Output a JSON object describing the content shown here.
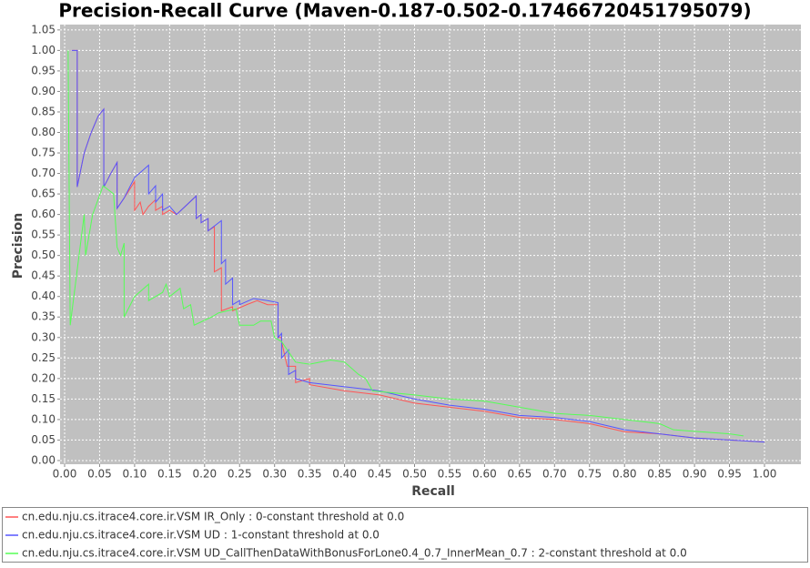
{
  "chart_data": {
    "type": "line",
    "title": "Precision-Recall Curve (Maven-0.187-0.502-0.17466720451795079)",
    "x_label": "Recall",
    "y_label": "Precision",
    "xlim": [
      -0.0065,
      1.052
    ],
    "ylim": [
      -0.009,
      1.063
    ],
    "grid": true,
    "legend": "bottom",
    "xticks": [
      {
        "value": 0,
        "label": "0.00"
      },
      {
        "value": 0.05,
        "label": "0.05"
      },
      {
        "value": 0.1,
        "label": "0.10"
      },
      {
        "value": 0.15,
        "label": "0.15"
      },
      {
        "value": 0.2,
        "label": "0.20"
      },
      {
        "value": 0.25,
        "label": "0.25"
      },
      {
        "value": 0.3,
        "label": "0.30"
      },
      {
        "value": 0.35,
        "label": "0.35"
      },
      {
        "value": 0.4,
        "label": "0.40"
      },
      {
        "value": 0.45,
        "label": "0.45"
      },
      {
        "value": 0.5,
        "label": "0.50"
      },
      {
        "value": 0.55,
        "label": "0.55"
      },
      {
        "value": 0.6,
        "label": "0.60"
      },
      {
        "value": 0.65,
        "label": "0.65"
      },
      {
        "value": 0.7,
        "label": "0.70"
      },
      {
        "value": 0.75,
        "label": "0.75"
      },
      {
        "value": 0.8,
        "label": "0.80"
      },
      {
        "value": 0.85,
        "label": "0.85"
      },
      {
        "value": 0.9,
        "label": "0.90"
      },
      {
        "value": 0.95,
        "label": "0.95"
      },
      {
        "value": 1,
        "label": "1.00"
      }
    ],
    "yticks": [
      {
        "value": 0,
        "label": "0.00"
      },
      {
        "value": 0.05,
        "label": "0.05"
      },
      {
        "value": 0.1,
        "label": "0.10"
      },
      {
        "value": 0.15,
        "label": "0.15"
      },
      {
        "value": 0.2,
        "label": "0.20"
      },
      {
        "value": 0.25,
        "label": "0.25"
      },
      {
        "value": 0.3,
        "label": "0.30"
      },
      {
        "value": 0.35,
        "label": "0.35"
      },
      {
        "value": 0.4,
        "label": "0.40"
      },
      {
        "value": 0.45,
        "label": "0.45"
      },
      {
        "value": 0.5,
        "label": "0.50"
      },
      {
        "value": 0.55,
        "label": "0.55"
      },
      {
        "value": 0.6,
        "label": "0.60"
      },
      {
        "value": 0.65,
        "label": "0.65"
      },
      {
        "value": 0.7,
        "label": "0.70"
      },
      {
        "value": 0.75,
        "label": "0.75"
      },
      {
        "value": 0.8,
        "label": "0.80"
      },
      {
        "value": 0.85,
        "label": "0.85"
      },
      {
        "value": 0.9,
        "label": "0.90"
      },
      {
        "value": 0.95,
        "label": "0.95"
      },
      {
        "value": 1,
        "label": "1.00"
      },
      {
        "value": 1.05,
        "label": "1.05"
      }
    ],
    "series": [
      {
        "name": "cn.edu.nju.cs.itrace4.core.ir.VSM IR_Only : 0-constant threshold at 0.0",
        "color": "#ff5555",
        "x": [
          0.01,
          0.018,
          0.018,
          0.028,
          0.038,
          0.048,
          0.056,
          0.056,
          0.066,
          0.075,
          0.075,
          0.085,
          0.1,
          0.1,
          0.108,
          0.112,
          0.12,
          0.13,
          0.13,
          0.14,
          0.14,
          0.15,
          0.16,
          0.188,
          0.188,
          0.195,
          0.195,
          0.205,
          0.205,
          0.214,
          0.214,
          0.224,
          0.224,
          0.24,
          0.24,
          0.26,
          0.275,
          0.29,
          0.305,
          0.305,
          0.31,
          0.31,
          0.318,
          0.33,
          0.33,
          0.35,
          0.35,
          0.4,
          0.45,
          0.5,
          0.55,
          0.6,
          0.65,
          0.7,
          0.75,
          0.8,
          0.85,
          0.9,
          0.95,
          1.0
        ],
        "values": [
          1.0,
          1.0,
          0.667,
          0.75,
          0.8,
          0.84,
          0.857,
          0.667,
          0.7,
          0.727,
          0.615,
          0.64,
          0.68,
          0.61,
          0.63,
          0.6,
          0.62,
          0.636,
          0.61,
          0.62,
          0.6,
          0.61,
          0.6,
          0.645,
          0.59,
          0.6,
          0.58,
          0.59,
          0.56,
          0.57,
          0.46,
          0.47,
          0.365,
          0.375,
          0.365,
          0.38,
          0.39,
          0.38,
          0.38,
          0.3,
          0.3,
          0.29,
          0.23,
          0.23,
          0.19,
          0.2,
          0.185,
          0.17,
          0.16,
          0.14,
          0.13,
          0.12,
          0.105,
          0.1,
          0.09,
          0.07,
          0.065,
          0.055,
          0.05,
          0.045
        ]
      },
      {
        "name": "cn.edu.nju.cs.itrace4.core.ir.VSM UD : 1-constant threshold at 0.0",
        "color": "#5555ff",
        "x": [
          0.01,
          0.018,
          0.018,
          0.028,
          0.038,
          0.048,
          0.056,
          0.056,
          0.066,
          0.075,
          0.075,
          0.085,
          0.1,
          0.12,
          0.12,
          0.13,
          0.13,
          0.14,
          0.14,
          0.15,
          0.16,
          0.188,
          0.188,
          0.195,
          0.195,
          0.205,
          0.205,
          0.224,
          0.224,
          0.23,
          0.23,
          0.24,
          0.24,
          0.25,
          0.25,
          0.27,
          0.29,
          0.305,
          0.305,
          0.31,
          0.31,
          0.32,
          0.32,
          0.33,
          0.33,
          0.35,
          0.4,
          0.45,
          0.5,
          0.55,
          0.6,
          0.65,
          0.7,
          0.75,
          0.8,
          0.85,
          0.9,
          0.95,
          1.0
        ],
        "values": [
          1.0,
          1.0,
          0.667,
          0.75,
          0.8,
          0.84,
          0.857,
          0.667,
          0.7,
          0.727,
          0.615,
          0.64,
          0.69,
          0.72,
          0.65,
          0.67,
          0.63,
          0.65,
          0.61,
          0.62,
          0.6,
          0.645,
          0.59,
          0.6,
          0.58,
          0.59,
          0.56,
          0.585,
          0.48,
          0.49,
          0.43,
          0.445,
          0.38,
          0.39,
          0.38,
          0.395,
          0.39,
          0.385,
          0.3,
          0.31,
          0.25,
          0.27,
          0.21,
          0.22,
          0.2,
          0.19,
          0.18,
          0.17,
          0.15,
          0.135,
          0.125,
          0.11,
          0.105,
          0.095,
          0.075,
          0.065,
          0.055,
          0.05,
          0.045
        ]
      },
      {
        "name": "cn.edu.nju.cs.itrace4.core.ir.VSM UD_CallThenDataWithBonusForLone0.4_0.7_InnerMean_0.7 : 2-constant threshold at 0.0",
        "color": "#55ff55",
        "x": [
          0.005,
          0.008,
          0.028,
          0.03,
          0.04,
          0.055,
          0.07,
          0.075,
          0.08,
          0.085,
          0.085,
          0.1,
          0.12,
          0.12,
          0.14,
          0.145,
          0.15,
          0.165,
          0.17,
          0.18,
          0.185,
          0.21,
          0.22,
          0.245,
          0.25,
          0.27,
          0.28,
          0.295,
          0.3,
          0.31,
          0.33,
          0.35,
          0.38,
          0.4,
          0.42,
          0.43,
          0.44,
          0.5,
          0.55,
          0.6,
          0.65,
          0.7,
          0.75,
          0.8,
          0.85,
          0.87,
          0.95,
          0.97
        ],
        "values": [
          1.0,
          0.33,
          0.6,
          0.5,
          0.6,
          0.67,
          0.65,
          0.52,
          0.5,
          0.53,
          0.35,
          0.4,
          0.43,
          0.39,
          0.41,
          0.43,
          0.4,
          0.42,
          0.37,
          0.38,
          0.33,
          0.35,
          0.36,
          0.37,
          0.33,
          0.33,
          0.34,
          0.34,
          0.3,
          0.29,
          0.24,
          0.235,
          0.245,
          0.24,
          0.21,
          0.2,
          0.17,
          0.16,
          0.15,
          0.145,
          0.13,
          0.115,
          0.11,
          0.1,
          0.09,
          0.075,
          0.065,
          0.06
        ]
      }
    ]
  }
}
